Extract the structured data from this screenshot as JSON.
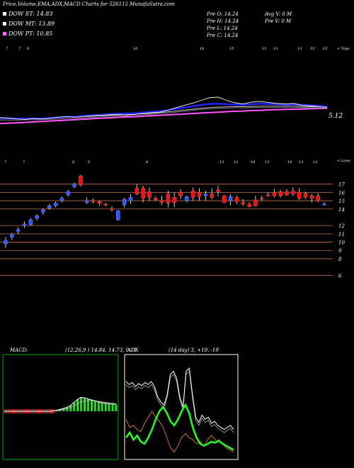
{
  "header": {
    "title": "Price,Volume,EMA,ADX,MACD Charts for 526115 MunafaSutra.com"
  },
  "legend": [
    {
      "label": "DOW ST: 14.83",
      "color": "#ffffff"
    },
    {
      "label": "DOW MT: 13.89",
      "color": "#ffffff"
    },
    {
      "label": "DOW PT: 10.85",
      "color": "#ff66ff"
    }
  ],
  "ohlc": {
    "open": "Pre   O: 14.24",
    "high": "Pre   H: 14.24",
    "low": "Pre   L: 14.24",
    "close": "Pre   C: 14.24",
    "avg_volume": "Avg V: 0  M",
    "pre_volume": "Pre   V: 0  M"
  },
  "ema_panel": {
    "right_label": "< Tops",
    "last_value_label": "5.12",
    "top_tick_labels": [
      {
        "text": "7",
        "pos": 8
      },
      {
        "text": "7",
        "pos": 26
      },
      {
        "text": "8",
        "pos": 38
      },
      {
        "text": "10",
        "pos": 188
      },
      {
        "text": "18",
        "pos": 282
      },
      {
        "text": "15",
        "pos": 324
      },
      {
        "text": "13",
        "pos": 370
      },
      {
        "text": "13",
        "pos": 386
      },
      {
        "text": "13",
        "pos": 420
      },
      {
        "text": "15",
        "pos": 438
      },
      {
        "text": "15",
        "pos": 456
      }
    ],
    "colors": {
      "price": "#ffffff",
      "ema_short": "#2222ff",
      "ema_mid": "#dddddd",
      "ema_long": "#ff55ff"
    }
  },
  "candle_panel": {
    "right_label": "< Lows",
    "low_tick_labels": [
      {
        "text": "7",
        "pos": 6
      },
      {
        "text": "7",
        "pos": 32
      },
      {
        "text": "6",
        "pos": 102
      },
      {
        "text": "5",
        "pos": 124
      },
      {
        "text": "8",
        "pos": 206
      },
      {
        "text": "13",
        "pos": 310
      },
      {
        "text": "13",
        "pos": 330
      },
      {
        "text": "14",
        "pos": 354
      },
      {
        "text": "13",
        "pos": 374
      },
      {
        "text": "14",
        "pos": 406
      },
      {
        "text": "13",
        "pos": 422
      },
      {
        "text": "13",
        "pos": 442
      }
    ],
    "price_levels": [
      17,
      16,
      15,
      14,
      12,
      11,
      10,
      9,
      8,
      6
    ],
    "colors": {
      "up": "#3355ff",
      "down": "#ee1111",
      "grid": "#c07040"
    }
  },
  "chart_data": {
    "type": "candlestick",
    "ylim": [
      5,
      18
    ],
    "candles": [
      {
        "o": 9.8,
        "h": 10.6,
        "l": 9.3,
        "c": 10.2
      },
      {
        "o": 10.6,
        "h": 11.1,
        "l": 10.3,
        "c": 10.9
      },
      {
        "o": 11.3,
        "h": 11.8,
        "l": 11.0,
        "c": 11.5
      },
      {
        "o": 12.0,
        "h": 12.5,
        "l": 11.7,
        "c": 12.2
      },
      {
        "o": 12.1,
        "h": 12.9,
        "l": 12.0,
        "c": 12.7
      },
      {
        "o": 12.9,
        "h": 13.4,
        "l": 12.6,
        "c": 13.2
      },
      {
        "o": 13.6,
        "h": 14.1,
        "l": 13.3,
        "c": 13.9
      },
      {
        "o": 14.1,
        "h": 14.6,
        "l": 13.9,
        "c": 14.4
      },
      {
        "o": 14.4,
        "h": 14.9,
        "l": 14.2,
        "c": 14.7
      },
      {
        "o": 15.0,
        "h": 15.5,
        "l": 14.8,
        "c": 15.3
      },
      {
        "o": 15.7,
        "h": 16.3,
        "l": 15.5,
        "c": 16.1
      },
      {
        "o": 16.7,
        "h": 17.2,
        "l": 16.5,
        "c": 17.0
      },
      {
        "o": 18.0,
        "h": 18.1,
        "l": 16.7,
        "c": 16.9
      },
      {
        "o": 14.8,
        "h": 15.4,
        "l": 14.6,
        "c": 15.0
      },
      {
        "o": 15.0,
        "h": 15.3,
        "l": 14.7,
        "c": 14.9
      },
      {
        "o": 14.9,
        "h": 15.0,
        "l": 14.4,
        "c": 14.7
      },
      {
        "o": 14.6,
        "h": 14.7,
        "l": 14.3,
        "c": 14.5
      },
      {
        "o": 14.0,
        "h": 14.3,
        "l": 13.7,
        "c": 13.9
      },
      {
        "o": 12.7,
        "h": 13.9,
        "l": 12.6,
        "c": 13.8
      },
      {
        "o": 14.5,
        "h": 15.3,
        "l": 14.2,
        "c": 15.2
      },
      {
        "o": 15.0,
        "h": 15.8,
        "l": 14.6,
        "c": 15.4
      },
      {
        "o": 16.5,
        "h": 17.0,
        "l": 15.7,
        "c": 15.8
      },
      {
        "o": 16.5,
        "h": 16.8,
        "l": 14.8,
        "c": 15.3
      },
      {
        "o": 16.1,
        "h": 16.6,
        "l": 15.0,
        "c": 15.4
      },
      {
        "o": 15.3,
        "h": 15.5,
        "l": 15.0,
        "c": 15.1
      },
      {
        "o": 15.0,
        "h": 15.6,
        "l": 14.5,
        "c": 14.8
      },
      {
        "o": 15.8,
        "h": 16.2,
        "l": 14.2,
        "c": 14.7
      },
      {
        "o": 15.4,
        "h": 16.0,
        "l": 14.2,
        "c": 14.8
      },
      {
        "o": 16.0,
        "h": 16.4,
        "l": 15.2,
        "c": 15.6
      },
      {
        "o": 15.0,
        "h": 15.6,
        "l": 14.8,
        "c": 15.5
      },
      {
        "o": 16.2,
        "h": 16.6,
        "l": 15.0,
        "c": 15.4
      },
      {
        "o": 16.0,
        "h": 16.5,
        "l": 15.0,
        "c": 15.5
      },
      {
        "o": 15.6,
        "h": 16.2,
        "l": 15.0,
        "c": 15.8
      },
      {
        "o": 15.8,
        "h": 16.5,
        "l": 15.2,
        "c": 15.4
      },
      {
        "o": 16.3,
        "h": 16.8,
        "l": 15.5,
        "c": 16.1
      },
      {
        "o": 15.6,
        "h": 15.7,
        "l": 14.7,
        "c": 14.8
      },
      {
        "o": 15.0,
        "h": 15.8,
        "l": 14.5,
        "c": 15.5
      },
      {
        "o": 15.4,
        "h": 15.6,
        "l": 14.6,
        "c": 14.9
      },
      {
        "o": 14.8,
        "h": 15.2,
        "l": 14.4,
        "c": 14.6
      },
      {
        "o": 14.6,
        "h": 14.8,
        "l": 14.2,
        "c": 14.3
      },
      {
        "o": 15.1,
        "h": 15.6,
        "l": 14.3,
        "c": 14.4
      },
      {
        "o": 15.3,
        "h": 15.6,
        "l": 15.0,
        "c": 15.2
      },
      {
        "o": 15.7,
        "h": 16.0,
        "l": 15.5,
        "c": 15.6
      },
      {
        "o": 16.0,
        "h": 16.4,
        "l": 15.4,
        "c": 15.6
      },
      {
        "o": 16.1,
        "h": 16.3,
        "l": 15.4,
        "c": 15.6
      },
      {
        "o": 16.1,
        "h": 16.4,
        "l": 15.6,
        "c": 15.7
      },
      {
        "o": 16.2,
        "h": 16.6,
        "l": 15.6,
        "c": 15.8
      },
      {
        "o": 16.0,
        "h": 16.5,
        "l": 15.1,
        "c": 15.3
      },
      {
        "o": 15.9,
        "h": 16.1,
        "l": 15.2,
        "c": 15.4
      },
      {
        "o": 15.6,
        "h": 15.8,
        "l": 14.8,
        "c": 15.3
      },
      {
        "o": 15.6,
        "h": 15.9,
        "l": 14.8,
        "c": 15.0
      },
      {
        "o": 14.6,
        "h": 14.8,
        "l": 14.4,
        "c": 14.6
      }
    ],
    "ema_series": {
      "price": [
        3.8,
        3.6,
        3.2,
        3.0,
        3.4,
        3.2,
        3.5,
        4.0,
        4.2,
        4.0,
        4.3,
        4.6,
        4.8,
        5.0,
        5.2,
        5.0,
        5.2,
        5.6,
        5.9,
        6.2,
        7.0,
        8.2,
        9.2,
        10.2,
        11.4,
        12.6,
        12.8,
        11.4,
        10.3,
        9.8,
        10.6,
        10.9,
        10.5,
        10.0,
        9.8,
        10.0,
        9.2,
        9.0,
        8.6,
        8.3
      ],
      "ema_short": [
        3.5,
        3.4,
        3.3,
        3.3,
        3.4,
        3.4,
        3.6,
        3.9,
        4.1,
        4.2,
        4.5,
        4.8,
        5.0,
        5.3,
        5.5,
        5.6,
        5.7,
        6.0,
        6.3,
        6.6,
        7.1,
        7.7,
        8.2,
        8.8,
        9.4,
        9.8,
        9.9,
        9.7,
        9.5,
        9.4,
        9.7,
        9.9,
        9.8,
        9.7,
        9.5,
        9.6,
        9.4,
        9.2,
        9.0,
        8.7
      ],
      "ema_mid": [
        3.2,
        3.2,
        3.2,
        3.3,
        3.3,
        3.4,
        3.5,
        3.7,
        3.9,
        4.0,
        4.2,
        4.4,
        4.6,
        4.8,
        5.0,
        5.1,
        5.3,
        5.5,
        5.7,
        6.0,
        6.3,
        6.7,
        7.1,
        7.5,
        7.9,
        8.2,
        8.4,
        8.5,
        8.6,
        8.6,
        8.7,
        8.8,
        8.8,
        8.8,
        8.8,
        8.8,
        8.7,
        8.6,
        8.5,
        8.4
      ],
      "ema_long": [
        1.2,
        1.3,
        1.5,
        1.7,
        1.9,
        2.1,
        2.3,
        2.5,
        2.7,
        2.9,
        3.1,
        3.3,
        3.5,
        3.7,
        3.9,
        4.1,
        4.2,
        4.4,
        4.6,
        4.8,
        5.0,
        5.2,
        5.4,
        5.6,
        5.8,
        6.0,
        6.2,
        6.4,
        6.6,
        6.7,
        6.9,
        7.0,
        7.2,
        7.3,
        7.4,
        7.5,
        7.6,
        7.7,
        7.8,
        7.9
      ]
    },
    "macd": {
      "label": "MACD:",
      "params": "(12,26,9 ) 14.84,  14.73,  0.11",
      "macd_line": [
        0,
        0,
        0,
        0,
        0,
        0,
        0,
        0,
        0,
        0,
        0,
        0,
        0,
        0,
        0.02,
        0.05,
        0.1,
        0.15,
        0.2,
        0.3,
        0.45,
        0.6,
        0.7,
        0.68,
        0.62,
        0.58,
        0.52,
        0.47,
        0.42,
        0.4,
        0.38,
        0.36,
        0.34
      ],
      "signal_line": [
        0,
        0,
        0,
        0,
        0,
        0,
        0,
        0,
        0,
        0,
        0,
        0,
        0,
        0,
        0.01,
        0.03,
        0.06,
        0.1,
        0.14,
        0.2,
        0.28,
        0.38,
        0.47,
        0.52,
        0.54,
        0.54,
        0.52,
        0.5,
        0.47,
        0.45,
        0.43,
        0.41,
        0.39
      ],
      "colors": {
        "histogram": "#22dd22",
        "macd": "#ffffff",
        "zero_band": "#ff3333",
        "frame": "#00aa00"
      }
    },
    "adx": {
      "label": "ADX",
      "params": "(14  day) 3,  +19,  -19",
      "adx_line": [
        75,
        72,
        74,
        70,
        73,
        71,
        74,
        72,
        75,
        70,
        60,
        55,
        52,
        62,
        82,
        85,
        78,
        60,
        50,
        85,
        88,
        62,
        40,
        35,
        42,
        38,
        40,
        34,
        36,
        32,
        30,
        28,
        30,
        32,
        28
      ],
      "plus_di": [
        20,
        25,
        18,
        22,
        16,
        14,
        20,
        28,
        38,
        46,
        50,
        44,
        36,
        32,
        38,
        46,
        52,
        44,
        30,
        20,
        14,
        12,
        14,
        16,
        15,
        17,
        14,
        12,
        10,
        8
      ],
      "minus_di": [
        38,
        30,
        32,
        28,
        26,
        34,
        40,
        46,
        40,
        36,
        30,
        20,
        10,
        6,
        12,
        20,
        24,
        20,
        18,
        14,
        16,
        12,
        18,
        22,
        18,
        16,
        14,
        10,
        8,
        6
      ],
      "colors": {
        "adx": "#ffffff",
        "plus_di": "#22ff22",
        "minus_di": "#cc7711"
      }
    }
  }
}
